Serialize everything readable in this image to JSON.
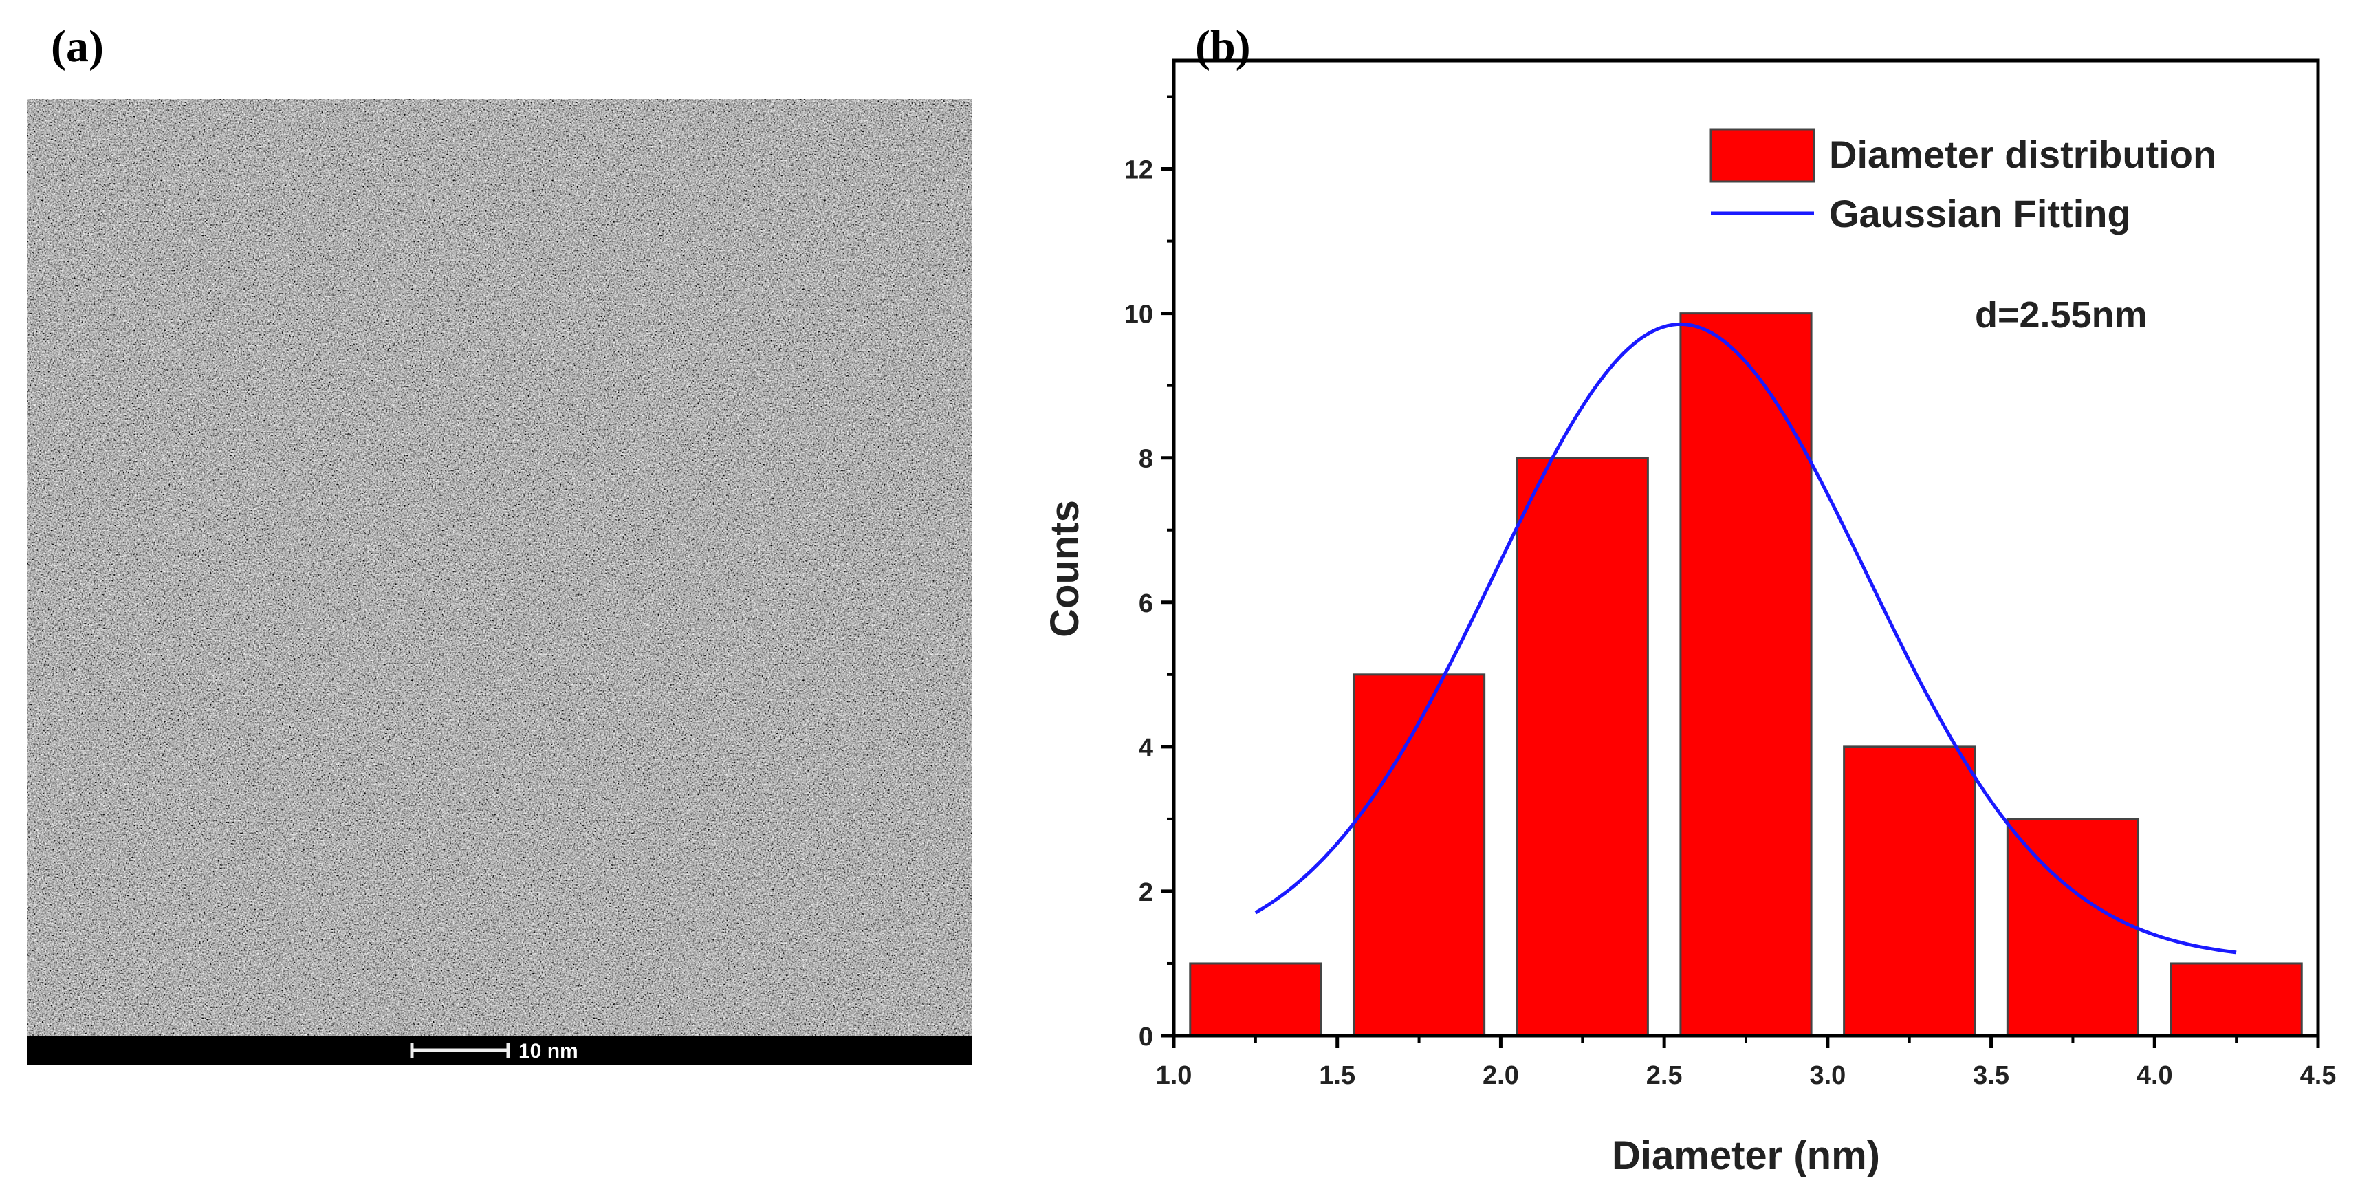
{
  "panels": {
    "a_label": "(a)",
    "b_label": "(b)"
  },
  "tem_image": {
    "scale_bar_label": "10 nm"
  },
  "chart_data": {
    "type": "bar",
    "title": "",
    "xlabel": "Diameter (nm)",
    "ylabel": "Counts",
    "xlim": [
      1.0,
      4.5
    ],
    "ylim": [
      0,
      13.5
    ],
    "xticks": [
      "1.0",
      "1.5",
      "2.0",
      "2.5",
      "3.0",
      "3.5",
      "4.0",
      "4.5"
    ],
    "yticks": [
      "0",
      "2",
      "4",
      "6",
      "8",
      "10",
      "12"
    ],
    "bar_width": 0.4,
    "x": [
      1.25,
      1.75,
      2.25,
      2.75,
      3.25,
      3.75,
      4.25
    ],
    "values": [
      1,
      5,
      8,
      10,
      4,
      3,
      1
    ],
    "fit": {
      "name": "Gaussian Fitting",
      "xc": 2.55,
      "y0": 1.05,
      "A": 8.8,
      "w": 0.57,
      "x_range": [
        1.25,
        4.25
      ]
    },
    "legend": [
      {
        "label": "Diameter distribution",
        "color": "#ff0000"
      },
      {
        "label": "Gaussian Fitting",
        "color": "#1a1aff"
      }
    ],
    "legend_position": "top-right",
    "annotation": "d=2.55nm",
    "grid": false
  }
}
